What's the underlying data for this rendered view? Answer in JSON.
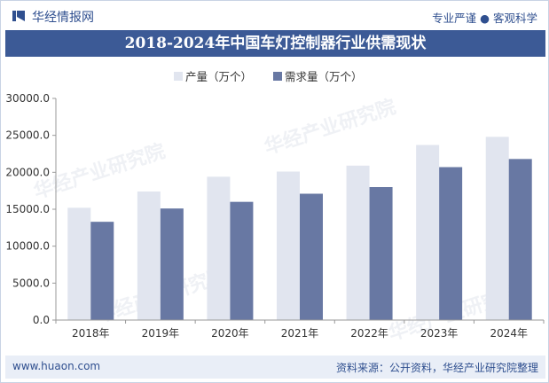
{
  "header": {
    "brand": "华经情报网",
    "tagline": "专业严谨 ● 客观科学"
  },
  "chart_data": {
    "type": "bar",
    "title": "2018-2024年中国车灯控制器行业供需现状",
    "categories": [
      "2018年",
      "2019年",
      "2020年",
      "2021年",
      "2022年",
      "2023年",
      "2024年"
    ],
    "series": [
      {
        "name": "产量（万个）",
        "color": "#e1e5ef",
        "values": [
          15200,
          17400,
          19400,
          20100,
          20900,
          23700,
          24800
        ]
      },
      {
        "name": "需求量（万个）",
        "color": "#6878a3",
        "values": [
          13300,
          15100,
          16000,
          17100,
          18000,
          20700,
          21800
        ]
      }
    ],
    "yticks": [
      "0.0",
      "5000.0",
      "10000.0",
      "15000.0",
      "20000.0",
      "25000.0",
      "30000.0"
    ],
    "ylim": [
      0,
      30000
    ],
    "xlabel": "",
    "ylabel": "",
    "grid": false,
    "legend": "top-left"
  },
  "footer": {
    "website": "www.huaon.com",
    "source": "资料来源：公开资料，华经产业研究院整理"
  },
  "watermark": "华经产业研究院"
}
